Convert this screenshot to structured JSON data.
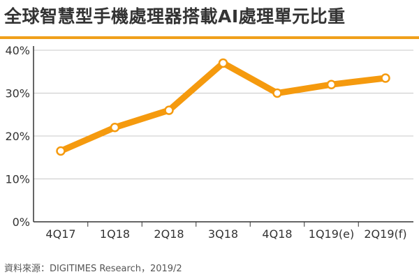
{
  "chart_data": {
    "type": "line",
    "title": "全球智慧型手機處理器搭載AI處理單元比重",
    "categories": [
      "4Q17",
      "1Q18",
      "2Q18",
      "3Q18",
      "4Q18",
      "1Q19(e)",
      "2Q19(f)"
    ],
    "series": [
      {
        "values": [
          16.5,
          22,
          26,
          37,
          30,
          32,
          33.5
        ]
      }
    ],
    "y_ticks": [
      "0%",
      "10%",
      "20%",
      "30%",
      "40%"
    ],
    "ylim": [
      0,
      40
    ],
    "grid": true,
    "source": "資料來源：DIGITIMES Research，2019/2"
  },
  "colors": {
    "accent": "#f0a01c",
    "line": "#f59a0e",
    "grid": "#c8c8c8",
    "axis": "#333333",
    "marker_fill": "#ffffff"
  }
}
